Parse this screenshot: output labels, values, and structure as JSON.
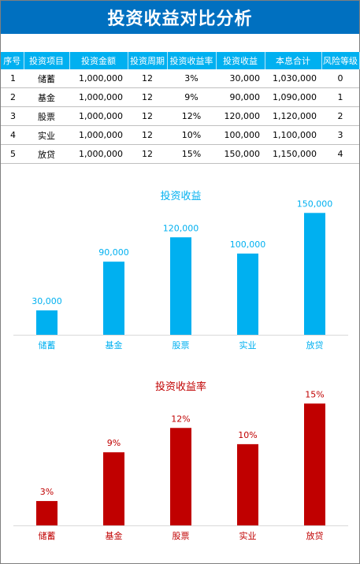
{
  "page": {
    "title": "投资收益对比分析"
  },
  "table": {
    "headers": [
      "序号",
      "投资项目",
      "投资金额",
      "投资周期",
      "投资收益率",
      "投资收益",
      "本息合计",
      "风险等级"
    ],
    "rows": [
      [
        "1",
        "储蓄",
        "1,000,000",
        "12",
        "3%",
        "30,000",
        "1,030,000",
        "0"
      ],
      [
        "2",
        "基金",
        "1,000,000",
        "12",
        "9%",
        "90,000",
        "1,090,000",
        "1"
      ],
      [
        "3",
        "股票",
        "1,000,000",
        "12",
        "12%",
        "120,000",
        "1,120,000",
        "2"
      ],
      [
        "4",
        "实业",
        "1,000,000",
        "12",
        "10%",
        "100,000",
        "1,100,000",
        "3"
      ],
      [
        "5",
        "放贷",
        "1,000,000",
        "12",
        "15%",
        "150,000",
        "1,150,000",
        "4"
      ]
    ]
  },
  "chart_data": [
    {
      "type": "bar",
      "title": "投资收益",
      "categories": [
        "储蓄",
        "基金",
        "股票",
        "实业",
        "放贷"
      ],
      "values": [
        30000,
        90000,
        120000,
        100000,
        150000
      ],
      "data_labels": [
        "30,000",
        "90,000",
        "120,000",
        "100,000",
        "150,000"
      ],
      "ylim": [
        0,
        160000
      ],
      "color": "#00b0f0",
      "grid": false,
      "legend": "none"
    },
    {
      "type": "bar",
      "title": "投资收益率",
      "categories": [
        "储蓄",
        "基金",
        "股票",
        "实业",
        "放贷"
      ],
      "values": [
        3,
        9,
        12,
        10,
        15
      ],
      "data_labels": [
        "3%",
        "9%",
        "12%",
        "10%",
        "15%"
      ],
      "ylim": [
        0,
        16
      ],
      "color": "#c00000",
      "grid": false,
      "legend": "none"
    }
  ]
}
